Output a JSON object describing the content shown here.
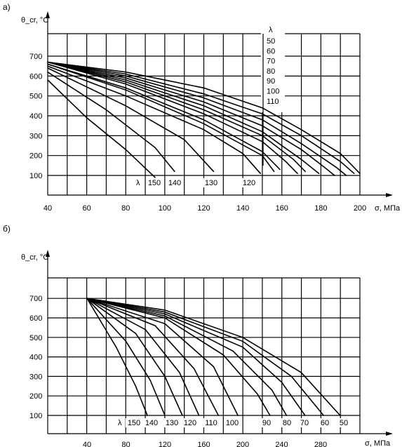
{
  "chart_data": [
    {
      "type": "line",
      "panel_label": "а)",
      "ylabel": "θ_cr, °C",
      "xlabel": "σ, МПа",
      "xlim": [
        40,
        200
      ],
      "ylim": [
        0,
        750
      ],
      "x_ticks": [
        "40",
        "60",
        "80",
        "100",
        "120",
        "140",
        "160",
        "180",
        "200"
      ],
      "y_ticks": [
        "100",
        "200",
        "300",
        "400",
        "500",
        "600",
        "700"
      ],
      "lambda_symbol": "λ",
      "legend_right": [
        "50",
        "60",
        "70",
        "80",
        "90",
        "100",
        "110"
      ],
      "legend_bottom": [
        "150",
        "140",
        "130",
        "120"
      ],
      "series": [
        {
          "name": "50",
          "x": [
            40,
            80,
            120,
            150,
            170,
            190,
            200
          ],
          "y": [
            670,
            620,
            540,
            440,
            330,
            210,
            110
          ]
        },
        {
          "name": "60",
          "x": [
            40,
            80,
            120,
            150,
            170,
            190,
            197
          ],
          "y": [
            670,
            610,
            510,
            410,
            300,
            170,
            110
          ]
        },
        {
          "name": "70",
          "x": [
            40,
            80,
            120,
            150,
            170,
            188,
            193
          ],
          "y": [
            670,
            600,
            490,
            380,
            260,
            140,
            100
          ]
        },
        {
          "name": "80",
          "x": [
            40,
            80,
            120,
            150,
            170,
            182,
            187
          ],
          "y": [
            670,
            590,
            470,
            350,
            230,
            140,
            100
          ]
        },
        {
          "name": "90",
          "x": [
            40,
            80,
            120,
            150,
            170,
            179
          ],
          "y": [
            670,
            580,
            450,
            320,
            180,
            110
          ]
        },
        {
          "name": "100",
          "x": [
            40,
            80,
            120,
            150,
            166,
            172
          ],
          "y": [
            670,
            570,
            430,
            300,
            180,
            120
          ]
        },
        {
          "name": "110",
          "x": [
            40,
            80,
            120,
            150,
            162,
            168
          ],
          "y": [
            670,
            560,
            410,
            270,
            170,
            110
          ]
        },
        {
          "name": "",
          "x": [
            40,
            80,
            120,
            150,
            159
          ],
          "y": [
            660,
            540,
            380,
            220,
            130
          ]
        },
        {
          "name": "",
          "x": [
            40,
            80,
            120,
            150,
            156
          ],
          "y": [
            660,
            530,
            360,
            200,
            120
          ]
        },
        {
          "name": "120",
          "x": [
            40,
            80,
            120,
            140,
            149
          ],
          "y": [
            650,
            500,
            330,
            210,
            110
          ]
        },
        {
          "name": "130",
          "x": [
            40,
            80,
            110,
            125
          ],
          "y": [
            640,
            450,
            280,
            120
          ]
        },
        {
          "name": "140",
          "x": [
            40,
            70,
            95,
            105
          ],
          "y": [
            620,
            430,
            240,
            120
          ]
        },
        {
          "name": "150",
          "x": [
            40,
            60,
            80,
            95
          ],
          "y": [
            580,
            390,
            230,
            90
          ]
        }
      ]
    },
    {
      "type": "line",
      "panel_label": "б)",
      "ylabel": "θ_cr, °C",
      "xlabel": "σ, МПа",
      "xlim": [
        20,
        320
      ],
      "ylim": [
        0,
        800
      ],
      "x_ticks": [
        "40",
        "80",
        "120",
        "160",
        "200",
        "240",
        "280"
      ],
      "y_ticks": [
        "100",
        "200",
        "300",
        "400",
        "500",
        "600",
        "700"
      ],
      "lambda_symbol": "λ",
      "legend_bottom": [
        "150",
        "140",
        "130",
        "120",
        "110",
        "100",
        "90",
        "80",
        "70",
        "60",
        "50"
      ],
      "series": [
        {
          "name": "50",
          "x": [
            40,
            120,
            200,
            260,
            300
          ],
          "y": [
            700,
            640,
            500,
            320,
            100
          ]
        },
        {
          "name": "60",
          "x": [
            40,
            120,
            200,
            250,
            283
          ],
          "y": [
            700,
            630,
            480,
            300,
            100
          ]
        },
        {
          "name": "70",
          "x": [
            40,
            120,
            200,
            240,
            264
          ],
          "y": [
            700,
            620,
            450,
            270,
            100
          ]
        },
        {
          "name": "80",
          "x": [
            40,
            120,
            190,
            230,
            245
          ],
          "y": [
            700,
            610,
            430,
            230,
            100
          ]
        },
        {
          "name": "90",
          "x": [
            40,
            120,
            180,
            215,
            228
          ],
          "y": [
            700,
            600,
            410,
            210,
            100
          ]
        },
        {
          "name": "100",
          "x": [
            40,
            120,
            170,
            195
          ],
          "y": [
            700,
            570,
            350,
            100
          ]
        },
        {
          "name": "110",
          "x": [
            40,
            110,
            150,
            175
          ],
          "y": [
            700,
            560,
            340,
            100
          ]
        },
        {
          "name": "120",
          "x": [
            40,
            100,
            135,
            155
          ],
          "y": [
            700,
            540,
            320,
            100
          ]
        },
        {
          "name": "130",
          "x": [
            40,
            90,
            120,
            138
          ],
          "y": [
            700,
            520,
            300,
            100
          ]
        },
        {
          "name": "140",
          "x": [
            40,
            80,
            105,
            120
          ],
          "y": [
            700,
            480,
            280,
            100
          ]
        },
        {
          "name": "150",
          "x": [
            40,
            70,
            90,
            102
          ],
          "y": [
            700,
            450,
            250,
            100
          ]
        }
      ]
    }
  ]
}
